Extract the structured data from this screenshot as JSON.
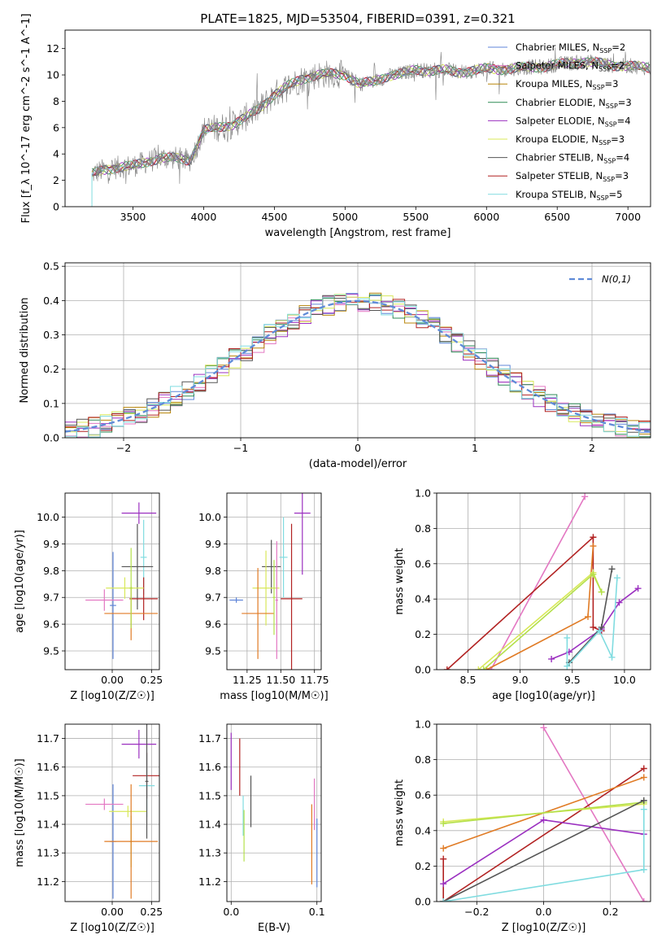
{
  "title": "PLATE=1825, MJD=53504, FIBERID=0391, z=0.321",
  "colors": {
    "Chabrier MILES": "#5f85d8",
    "Salpeter MILES": "#e377c2",
    "Kroupa MILES": "#b8860b",
    "Chabrier ELODIE": "#2e8b57",
    "Salpeter ELODIE": "#9b30c0",
    "Kroupa ELODIE": "#d8e85a",
    "Chabrier STELIB": "#555555",
    "Salpeter STELIB": "#b22222",
    "Kroupa STELIB": "#80dce0",
    "orange": "#e07b25",
    "limegreen": "#b4e04a",
    "data": "#808080",
    "gaussian": "#5f8bd8"
  },
  "chart_data": [
    {
      "id": "spectrum",
      "type": "line",
      "xlabel": "wavelength [Angstrom, rest frame]",
      "ylabel": "Flux [f_λ 10^-17 erg cm^-2 s^-1 A^-1]",
      "xlim": [
        3020,
        7160
      ],
      "ylim": [
        0,
        13.4
      ],
      "xticks": [
        3500,
        4000,
        4500,
        5000,
        5500,
        6000,
        6500,
        7000
      ],
      "yticks": [
        0,
        2,
        4,
        6,
        8,
        10,
        12
      ],
      "grid": false,
      "legend": "top-right",
      "series": [
        {
          "name": "Chabrier MILES, N_SSP=2"
        },
        {
          "name": "Salpeter MILES, N_SSP=2"
        },
        {
          "name": "Kroupa MILES, N_SSP=3"
        },
        {
          "name": "Chabrier ELODIE, N_SSP=3"
        },
        {
          "name": "Salpeter ELODIE, N_SSP=4"
        },
        {
          "name": "Kroupa ELODIE, N_SSP=3"
        },
        {
          "name": "Chabrier STELIB, N_SSP=4"
        },
        {
          "name": "Salpeter STELIB, N_SSP=3"
        },
        {
          "name": "Kroupa STELIB, N_SSP=5"
        }
      ],
      "continuum": {
        "x": [
          3210,
          3300,
          3400,
          3500,
          3600,
          3700,
          3800,
          3900,
          3950,
          4000,
          4100,
          4200,
          4300,
          4400,
          4500,
          4600,
          4700,
          4800,
          4900,
          5000,
          5100,
          5200,
          5300,
          5400,
          5500,
          5600,
          5700,
          5800,
          5900,
          6000,
          6100,
          6200,
          6300,
          6400,
          6500,
          6600,
          6700,
          6800,
          6900,
          7000,
          7100,
          7160
        ],
        "y": [
          2.5,
          2.8,
          3.0,
          3.1,
          3.4,
          3.7,
          3.7,
          3.5,
          4.5,
          5.8,
          6.0,
          6.2,
          6.8,
          7.5,
          8.5,
          9.2,
          9.7,
          10.0,
          10.1,
          10.0,
          9.3,
          9.5,
          9.9,
          10.1,
          10.4,
          10.3,
          10.4,
          10.2,
          10.3,
          10.5,
          10.4,
          10.5,
          10.6,
          10.6,
          10.8,
          10.9,
          11.0,
          10.9,
          10.7,
          10.7,
          10.6,
          10.5
        ]
      }
    },
    {
      "id": "residuals",
      "type": "line",
      "xlabel": "(data-model)/error",
      "ylabel": "Normed distribution",
      "xlim": [
        -2.5,
        2.5
      ],
      "ylim": [
        0,
        0.51
      ],
      "xticks": [
        -2,
        -1,
        0,
        1,
        2
      ],
      "yticks": [
        0.0,
        0.1,
        0.2,
        0.3,
        0.4,
        0.5
      ],
      "grid": true,
      "legend": "top-right",
      "gaussian_label": "N(0,1)"
    },
    {
      "id": "age_vs_Z",
      "type": "scatter",
      "xlabel": "Z [log10(Z/Z☉)]",
      "ylabel": "age [log10(age/yr)]",
      "xlim": [
        -0.3,
        0.3
      ],
      "ylim": [
        9.43,
        10.09
      ],
      "xticks": [
        0.0,
        0.25
      ],
      "yticks": [
        9.5,
        9.6,
        9.7,
        9.8,
        9.9,
        10.0
      ],
      "grid": true,
      "points": [
        {
          "model": "Chabrier MILES",
          "x": 0.005,
          "y": 9.67,
          "xerr": 0.02,
          "yerr": 0.2
        },
        {
          "model": "Salpeter ELODIE",
          "x": 0.17,
          "y": 10.015,
          "xerr": 0.11,
          "yerr": 0.04
        },
        {
          "model": "Kroupa STELIB",
          "x": 0.2,
          "y": 9.85,
          "xerr": 0.02,
          "yerr": 0.14
        },
        {
          "model": "Chabrier STELIB",
          "x": 0.16,
          "y": 9.815,
          "xerr": 0.1,
          "yerr": 0.16
        },
        {
          "model": "Salpeter STELIB",
          "x": 0.2,
          "y": 9.695,
          "xerr": 0.09,
          "yerr": 0.08
        },
        {
          "model": "Kroupa ELODIE",
          "x": 0.08,
          "y": 9.735,
          "xerr": 0.12,
          "yerr": 0.04
        },
        {
          "model": "Salpeter MILES",
          "x": -0.05,
          "y": 9.69,
          "xerr": 0.12,
          "yerr": 0.04
        },
        {
          "model": "orange",
          "x": 0.12,
          "y": 9.64,
          "xerr": 0.17,
          "yerr": 0.1
        },
        {
          "model": "limegreen",
          "x": 0.12,
          "y": 9.735,
          "xerr": 0.01,
          "yerr": 0.15
        }
      ]
    },
    {
      "id": "age_vs_mass",
      "type": "scatter",
      "xlabel": "mass [log10(M/M☉)]",
      "ylabel": "",
      "xlim": [
        11.1,
        11.8
      ],
      "ylim": [
        9.43,
        10.09
      ],
      "xticks": [
        11.25,
        11.5,
        11.75
      ],
      "yticks": [
        9.5,
        9.6,
        9.7,
        9.8,
        9.9,
        10.0
      ],
      "grid": true,
      "points": [
        {
          "model": "Chabrier MILES",
          "x": 11.17,
          "y": 9.69,
          "xerr": 0.05,
          "yerr": 0.01
        },
        {
          "model": "Salpeter ELODIE",
          "x": 11.66,
          "y": 10.015,
          "xerr": 0.06,
          "yerr": 0.23
        },
        {
          "model": "Kroupa STELIB",
          "x": 11.52,
          "y": 9.85,
          "xerr": 0.03,
          "yerr": 0.15
        },
        {
          "model": "Chabrier STELIB",
          "x": 11.43,
          "y": 9.815,
          "xerr": 0.07,
          "yerr": 0.1
        },
        {
          "model": "Salpeter STELIB",
          "x": 11.58,
          "y": 9.695,
          "xerr": 0.08,
          "yerr": 0.28
        },
        {
          "model": "Kroupa ELODIE",
          "x": 11.39,
          "y": 9.735,
          "xerr": 0.1,
          "yerr": 0.14
        },
        {
          "model": "orange",
          "x": 11.33,
          "y": 9.64,
          "xerr": 0.12,
          "yerr": 0.17
        },
        {
          "model": "limegreen",
          "x": 11.45,
          "y": 9.7,
          "xerr": 0.01,
          "yerr": 0.14
        },
        {
          "model": "Salpeter MILES",
          "x": 11.47,
          "y": 9.69,
          "xerr": 0.01,
          "yerr": 0.22
        }
      ]
    },
    {
      "id": "massweight_vs_age",
      "type": "line",
      "xlabel": "age [log10(age/yr)]",
      "ylabel": "mass weight",
      "xlim": [
        8.2,
        10.25
      ],
      "ylim": [
        0,
        1
      ],
      "xticks": [
        8.5,
        9.0,
        9.5,
        10.0
      ],
      "yticks": [
        0.0,
        0.2,
        0.4,
        0.6,
        0.8,
        1.0
      ],
      "grid": true,
      "series": [
        {
          "model": "Salpeter MILES",
          "points": [
            [
              8.72,
              0.0
            ],
            [
              9.62,
              0.98
            ]
          ]
        },
        {
          "model": "Salpeter STELIB",
          "points": [
            [
              8.3,
              0.0
            ],
            [
              9.7,
              0.75
            ],
            [
              9.7,
              0.24
            ],
            [
              9.78,
              0.22
            ]
          ]
        },
        {
          "model": "orange",
          "points": [
            [
              8.68,
              0.0
            ],
            [
              9.65,
              0.3
            ],
            [
              9.7,
              0.7
            ]
          ]
        },
        {
          "model": "Kroupa ELODIE",
          "points": [
            [
              8.6,
              0.0
            ],
            [
              9.7,
              0.55
            ],
            [
              9.78,
              0.44
            ]
          ]
        },
        {
          "model": "limegreen",
          "points": [
            [
              8.65,
              0.0
            ],
            [
              9.7,
              0.54
            ],
            [
              9.78,
              0.44
            ]
          ]
        },
        {
          "model": "Salpeter ELODIE",
          "points": [
            [
              9.3,
              0.06
            ],
            [
              9.47,
              0.1
            ],
            [
              9.78,
              0.23
            ],
            [
              9.95,
              0.38
            ],
            [
              10.13,
              0.46
            ]
          ]
        },
        {
          "model": "Chabrier STELIB",
          "points": [
            [
              9.47,
              0.04
            ],
            [
              9.78,
              0.24
            ],
            [
              9.88,
              0.57
            ]
          ]
        },
        {
          "model": "Kroupa STELIB",
          "points": [
            [
              9.45,
              0.18
            ],
            [
              9.45,
              0.02
            ],
            [
              9.76,
              0.22
            ],
            [
              9.88,
              0.07
            ],
            [
              9.93,
              0.52
            ]
          ]
        }
      ]
    },
    {
      "id": "mass_vs_Z",
      "type": "scatter",
      "xlabel": "Z [log10(Z/Z☉)]",
      "ylabel": "mass [log10(M/M☉)]",
      "xlim": [
        -0.3,
        0.3
      ],
      "ylim": [
        11.13,
        11.75
      ],
      "xticks": [
        0.0,
        0.25
      ],
      "yticks": [
        11.2,
        11.3,
        11.4,
        11.5,
        11.6,
        11.7
      ],
      "grid": true,
      "points": [
        {
          "model": "Chabrier MILES",
          "x": 0.005,
          "y": 11.34,
          "xerr": 0.02,
          "yerr": 0.2
        },
        {
          "model": "Salpeter ELODIE",
          "x": 0.17,
          "y": 11.68,
          "xerr": 0.11,
          "yerr": 0.05
        },
        {
          "model": "Salpeter STELIB",
          "x": 0.22,
          "y": 11.57,
          "xerr": 0.09,
          "yerr": 0.08
        },
        {
          "model": "Kroupa STELIB",
          "x": 0.22,
          "y": 11.535,
          "xerr": 0.05,
          "yerr": 0.11
        },
        {
          "model": "Salpeter MILES",
          "x": -0.05,
          "y": 11.47,
          "xerr": 0.12,
          "yerr": 0.02
        },
        {
          "model": "Kroupa ELODIE",
          "x": 0.1,
          "y": 11.445,
          "xerr": 0.12,
          "yerr": 0.02
        },
        {
          "model": "limegreen",
          "x": 0.12,
          "y": 11.34,
          "xerr": 0.01,
          "yerr": 0.09
        },
        {
          "model": "orange",
          "x": 0.12,
          "y": 11.34,
          "xerr": 0.17,
          "yerr": 0.2
        },
        {
          "model": "Chabrier STELIB",
          "x": 0.22,
          "y": 11.55,
          "xerr": 0.01,
          "yerr": 0.2
        }
      ]
    },
    {
      "id": "mass_vs_ebv",
      "type": "scatter",
      "xlabel": "E(B-V)",
      "ylabel": "",
      "xlim": [
        -0.005,
        0.105
      ],
      "ylim": [
        11.13,
        11.75
      ],
      "xticks": [
        0.0,
        0.1
      ],
      "yticks": [
        11.2,
        11.3,
        11.4,
        11.5,
        11.6,
        11.7
      ],
      "grid": true,
      "points": [
        {
          "model": "Salpeter ELODIE",
          "x": 0.0,
          "y": 11.62,
          "xerr": 0.0,
          "yerr": 0.1
        },
        {
          "model": "Salpeter STELIB",
          "x": 0.01,
          "y": 11.6,
          "xerr": 0.0,
          "yerr": 0.1
        },
        {
          "model": "Kroupa STELIB",
          "x": 0.014,
          "y": 11.43,
          "xerr": 0.0,
          "yerr": 0.07
        },
        {
          "model": "limegreen",
          "x": 0.015,
          "y": 11.36,
          "xerr": 0.0,
          "yerr": 0.09
        },
        {
          "model": "Chabrier STELIB",
          "x": 0.023,
          "y": 11.48,
          "xerr": 0.0,
          "yerr": 0.09
        },
        {
          "model": "orange",
          "x": 0.094,
          "y": 11.33,
          "xerr": 0.0,
          "yerr": 0.14
        },
        {
          "model": "Salpeter MILES",
          "x": 0.097,
          "y": 11.47,
          "xerr": 0.0,
          "yerr": 0.09
        },
        {
          "model": "Chabrier MILES",
          "x": 0.1,
          "y": 11.3,
          "xerr": 0.0,
          "yerr": 0.12
        }
      ]
    },
    {
      "id": "massweight_vs_Z",
      "type": "line",
      "xlabel": "Z [log10(Z/Z☉)]",
      "ylabel": "mass weight",
      "xlim": [
        -0.32,
        0.32
      ],
      "ylim": [
        0,
        1
      ],
      "xticks": [
        -0.2,
        0.0,
        0.2
      ],
      "yticks": [
        0.0,
        0.2,
        0.4,
        0.6,
        0.8,
        1.0
      ],
      "grid": true,
      "series": [
        {
          "model": "Salpeter MILES",
          "points": [
            [
              0.0,
              0.98
            ],
            [
              0.3,
              0.0
            ]
          ]
        },
        {
          "model": "Salpeter STELIB",
          "points": [
            [
              -0.3,
              0.24
            ],
            [
              -0.3,
              0.0
            ],
            [
              0.3,
              0.75
            ]
          ]
        },
        {
          "model": "orange",
          "points": [
            [
              -0.3,
              0.3
            ],
            [
              0.3,
              0.7
            ]
          ]
        },
        {
          "model": "Kroupa ELODIE",
          "points": [
            [
              -0.3,
              0.45
            ],
            [
              0.3,
              0.55
            ]
          ]
        },
        {
          "model": "limegreen",
          "points": [
            [
              -0.3,
              0.44
            ],
            [
              0.3,
              0.56
            ]
          ]
        },
        {
          "model": "Salpeter ELODIE",
          "points": [
            [
              -0.3,
              0.1
            ],
            [
              0.0,
              0.46
            ],
            [
              0.3,
              0.38
            ]
          ]
        },
        {
          "model": "Chabrier STELIB",
          "points": [
            [
              -0.3,
              0.0
            ],
            [
              0.3,
              0.57
            ]
          ]
        },
        {
          "model": "Kroupa STELIB",
          "points": [
            [
              -0.3,
              0.0
            ],
            [
              0.3,
              0.18
            ],
            [
              0.3,
              0.52
            ]
          ]
        }
      ]
    }
  ]
}
